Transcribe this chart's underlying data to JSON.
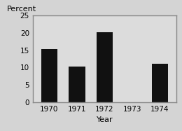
{
  "categories": [
    "1970",
    "1971",
    "1972",
    "1973",
    "1974"
  ],
  "values": [
    15.3,
    10.3,
    20.3,
    0,
    11.2
  ],
  "bar_color": "#111111",
  "background_color": "#d4d4d4",
  "plot_bg_color": "#dcdcdc",
  "frame_color": "#888888",
  "title": "Percent",
  "xlabel": "Year",
  "ylim": [
    0,
    25
  ],
  "yticks": [
    0,
    5,
    10,
    15,
    20,
    25
  ],
  "title_fontsize": 8,
  "axis_label_fontsize": 8,
  "tick_fontsize": 7.5,
  "bar_width": 0.6
}
